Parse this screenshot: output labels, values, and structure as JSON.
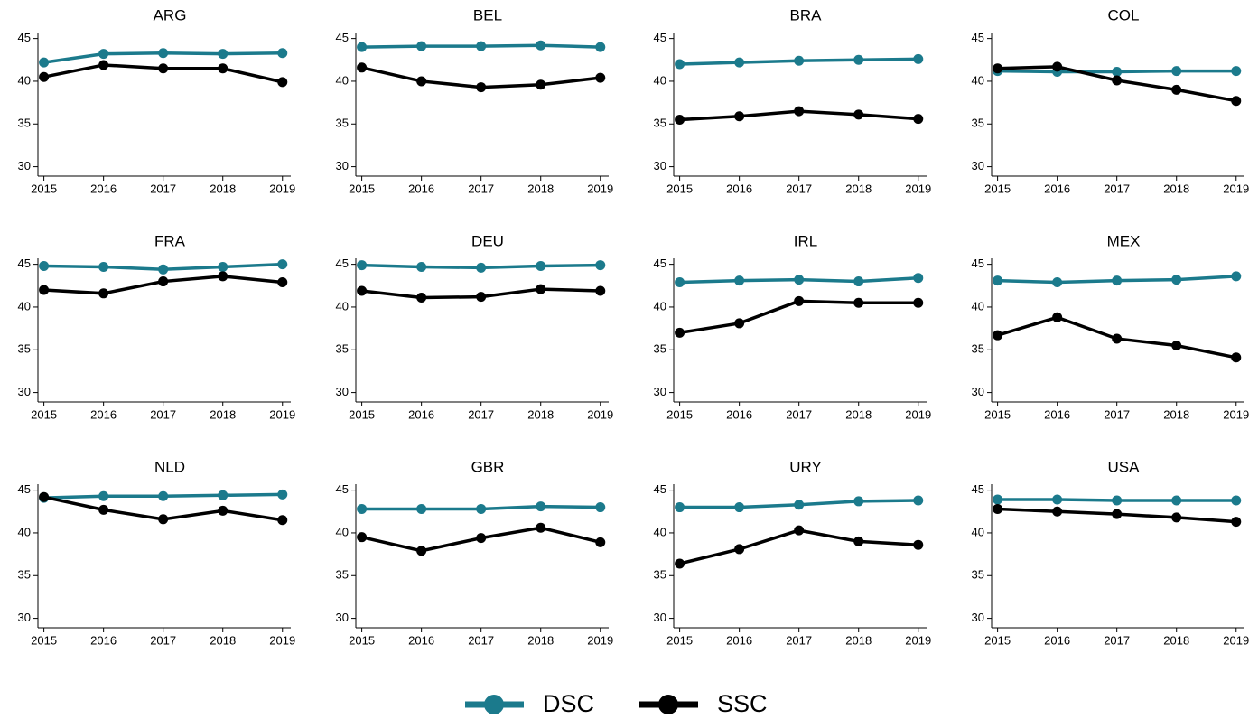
{
  "chart_data": [
    {
      "type": "line",
      "title": "ARG",
      "x": [
        2015,
        2016,
        2017,
        2018,
        2019
      ],
      "xlim": [
        2014.9,
        2019.14
      ],
      "xticks": [
        2015,
        2016,
        2017,
        2018,
        2019
      ],
      "ylim": [
        28.9,
        45.7
      ],
      "yticks": [
        30,
        35,
        40,
        45
      ],
      "series": [
        {
          "name": "DSC",
          "color": "#1b7a8c",
          "values": [
            42.2,
            43.2,
            43.3,
            43.2,
            43.3
          ]
        },
        {
          "name": "SSC",
          "color": "#000000",
          "values": [
            40.5,
            41.9,
            41.5,
            41.5,
            39.9
          ]
        }
      ]
    },
    {
      "type": "line",
      "title": "BEL",
      "x": [
        2015,
        2016,
        2017,
        2018,
        2019
      ],
      "xlim": [
        2014.9,
        2019.14
      ],
      "xticks": [
        2015,
        2016,
        2017,
        2018,
        2019
      ],
      "ylim": [
        28.9,
        45.7
      ],
      "yticks": [
        30,
        35,
        40,
        45
      ],
      "series": [
        {
          "name": "DSC",
          "color": "#1b7a8c",
          "values": [
            44.0,
            44.1,
            44.1,
            44.2,
            44.0
          ]
        },
        {
          "name": "SSC",
          "color": "#000000",
          "values": [
            41.6,
            40.0,
            39.3,
            39.6,
            40.4
          ]
        }
      ]
    },
    {
      "type": "line",
      "title": "BRA",
      "x": [
        2015,
        2016,
        2017,
        2018,
        2019
      ],
      "xlim": [
        2014.9,
        2019.14
      ],
      "xticks": [
        2015,
        2016,
        2017,
        2018,
        2019
      ],
      "ylim": [
        28.9,
        45.7
      ],
      "yticks": [
        30,
        35,
        40,
        45
      ],
      "series": [
        {
          "name": "DSC",
          "color": "#1b7a8c",
          "values": [
            42.0,
            42.2,
            42.4,
            42.5,
            42.6
          ]
        },
        {
          "name": "SSC",
          "color": "#000000",
          "values": [
            35.5,
            35.9,
            36.5,
            36.1,
            35.6
          ]
        }
      ]
    },
    {
      "type": "line",
      "title": "COL",
      "x": [
        2015,
        2016,
        2017,
        2018,
        2019
      ],
      "xlim": [
        2014.9,
        2019.14
      ],
      "xticks": [
        2015,
        2016,
        2017,
        2018,
        2019
      ],
      "ylim": [
        28.9,
        45.7
      ],
      "yticks": [
        30,
        35,
        40,
        45
      ],
      "series": [
        {
          "name": "DSC",
          "color": "#1b7a8c",
          "values": [
            41.2,
            41.1,
            41.1,
            41.2,
            41.2
          ]
        },
        {
          "name": "SSC",
          "color": "#000000",
          "values": [
            41.5,
            41.7,
            40.1,
            39.0,
            37.7
          ]
        }
      ]
    },
    {
      "type": "line",
      "title": "FRA",
      "x": [
        2015,
        2016,
        2017,
        2018,
        2019
      ],
      "xlim": [
        2014.9,
        2019.14
      ],
      "xticks": [
        2015,
        2016,
        2017,
        2018,
        2019
      ],
      "ylim": [
        28.9,
        45.7
      ],
      "yticks": [
        30,
        35,
        40,
        45
      ],
      "series": [
        {
          "name": "DSC",
          "color": "#1b7a8c",
          "values": [
            44.8,
            44.7,
            44.4,
            44.7,
            45.0
          ]
        },
        {
          "name": "SSC",
          "color": "#000000",
          "values": [
            42.0,
            41.6,
            43.0,
            43.6,
            42.9
          ]
        }
      ]
    },
    {
      "type": "line",
      "title": "DEU",
      "x": [
        2015,
        2016,
        2017,
        2018,
        2019
      ],
      "xlim": [
        2014.9,
        2019.14
      ],
      "xticks": [
        2015,
        2016,
        2017,
        2018,
        2019
      ],
      "ylim": [
        28.9,
        45.7
      ],
      "yticks": [
        30,
        35,
        40,
        45
      ],
      "series": [
        {
          "name": "DSC",
          "color": "#1b7a8c",
          "values": [
            44.9,
            44.7,
            44.6,
            44.8,
            44.9
          ]
        },
        {
          "name": "SSC",
          "color": "#000000",
          "values": [
            41.9,
            41.1,
            41.2,
            42.1,
            41.9
          ]
        }
      ]
    },
    {
      "type": "line",
      "title": "IRL",
      "x": [
        2015,
        2016,
        2017,
        2018,
        2019
      ],
      "xlim": [
        2014.9,
        2019.14
      ],
      "xticks": [
        2015,
        2016,
        2017,
        2018,
        2019
      ],
      "ylim": [
        28.9,
        45.7
      ],
      "yticks": [
        30,
        35,
        40,
        45
      ],
      "series": [
        {
          "name": "DSC",
          "color": "#1b7a8c",
          "values": [
            42.9,
            43.1,
            43.2,
            43.0,
            43.4
          ]
        },
        {
          "name": "SSC",
          "color": "#000000",
          "values": [
            37.0,
            38.1,
            40.7,
            40.5,
            40.5
          ]
        }
      ]
    },
    {
      "type": "line",
      "title": "MEX",
      "x": [
        2015,
        2016,
        2017,
        2018,
        2019
      ],
      "xlim": [
        2014.9,
        2019.14
      ],
      "xticks": [
        2015,
        2016,
        2017,
        2018,
        2019
      ],
      "ylim": [
        28.9,
        45.7
      ],
      "yticks": [
        30,
        35,
        40,
        45
      ],
      "series": [
        {
          "name": "DSC",
          "color": "#1b7a8c",
          "values": [
            43.1,
            42.9,
            43.1,
            43.2,
            43.6
          ]
        },
        {
          "name": "SSC",
          "color": "#000000",
          "values": [
            36.7,
            38.8,
            36.3,
            35.5,
            34.1
          ]
        }
      ]
    },
    {
      "type": "line",
      "title": "NLD",
      "x": [
        2015,
        2016,
        2017,
        2018,
        2019
      ],
      "xlim": [
        2014.9,
        2019.14
      ],
      "xticks": [
        2015,
        2016,
        2017,
        2018,
        2019
      ],
      "ylim": [
        28.9,
        45.7
      ],
      "yticks": [
        30,
        35,
        40,
        45
      ],
      "series": [
        {
          "name": "DSC",
          "color": "#1b7a8c",
          "values": [
            44.1,
            44.3,
            44.3,
            44.4,
            44.5
          ]
        },
        {
          "name": "SSC",
          "color": "#000000",
          "values": [
            44.2,
            42.7,
            41.6,
            42.6,
            41.5
          ]
        }
      ]
    },
    {
      "type": "line",
      "title": "GBR",
      "x": [
        2015,
        2016,
        2017,
        2018,
        2019
      ],
      "xlim": [
        2014.9,
        2019.14
      ],
      "xticks": [
        2015,
        2016,
        2017,
        2018,
        2019
      ],
      "ylim": [
        28.9,
        45.7
      ],
      "yticks": [
        30,
        35,
        40,
        45
      ],
      "series": [
        {
          "name": "DSC",
          "color": "#1b7a8c",
          "values": [
            42.8,
            42.8,
            42.8,
            43.1,
            43.0
          ]
        },
        {
          "name": "SSC",
          "color": "#000000",
          "values": [
            39.5,
            37.9,
            39.4,
            40.6,
            38.9
          ]
        }
      ]
    },
    {
      "type": "line",
      "title": "URY",
      "x": [
        2015,
        2016,
        2017,
        2018,
        2019
      ],
      "xlim": [
        2014.9,
        2019.14
      ],
      "xticks": [
        2015,
        2016,
        2017,
        2018,
        2019
      ],
      "ylim": [
        28.9,
        45.7
      ],
      "yticks": [
        30,
        35,
        40,
        45
      ],
      "series": [
        {
          "name": "DSC",
          "color": "#1b7a8c",
          "values": [
            43.0,
            43.0,
            43.3,
            43.7,
            43.8
          ]
        },
        {
          "name": "SSC",
          "color": "#000000",
          "values": [
            36.4,
            38.1,
            40.3,
            39.0,
            38.6
          ]
        }
      ]
    },
    {
      "type": "line",
      "title": "USA",
      "x": [
        2015,
        2016,
        2017,
        2018,
        2019
      ],
      "xlim": [
        2014.9,
        2019.14
      ],
      "xticks": [
        2015,
        2016,
        2017,
        2018,
        2019
      ],
      "ylim": [
        28.9,
        45.7
      ],
      "yticks": [
        30,
        35,
        40,
        45
      ],
      "series": [
        {
          "name": "DSC",
          "color": "#1b7a8c",
          "values": [
            43.9,
            43.9,
            43.8,
            43.8,
            43.8
          ]
        },
        {
          "name": "SSC",
          "color": "#000000",
          "values": [
            42.8,
            42.5,
            42.2,
            41.8,
            41.3
          ]
        }
      ]
    }
  ]
}
